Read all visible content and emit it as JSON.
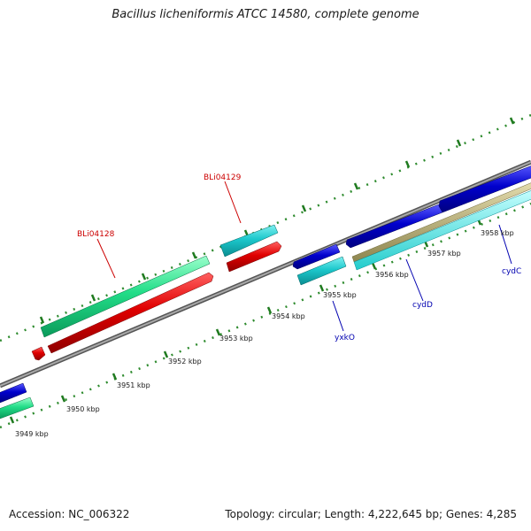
{
  "header": {
    "title": "Bacillus licheniformis ATCC 14580, complete genome"
  },
  "footer": {
    "accession": "Accession: NC_006322",
    "summary": "Topology: circular; Length: 4,222,645 bp; Genes: 4,285"
  },
  "colors": {
    "backbone": "#888888",
    "tick": "#2e8b2e",
    "forward_gene": "#0000cc",
    "forward_gene_alt": "#00c8c8",
    "reverse_gene": "#e00000",
    "reverse_gene_alt": "#22dd88",
    "gold_gene": "#b8b07a",
    "label_red": "#cc0000",
    "label_blue": "#0000b0"
  },
  "scale_labels": [
    "3949 kbp",
    "3950 kbp",
    "3951 kbp",
    "3952 kbp",
    "3953 kbp",
    "3954 kbp",
    "3955 kbp",
    "3956 kbp",
    "3957 kbp",
    "3958 kbp"
  ],
  "gene_labels": [
    {
      "text": "BLi04128",
      "color": "red"
    },
    {
      "text": "BLi04129",
      "color": "red"
    },
    {
      "text": "yxkO",
      "color": "blue"
    },
    {
      "text": "cydD",
      "color": "blue"
    },
    {
      "text": "cydC",
      "color": "blue"
    }
  ],
  "icons": [
    "gene-arrow-icon"
  ]
}
